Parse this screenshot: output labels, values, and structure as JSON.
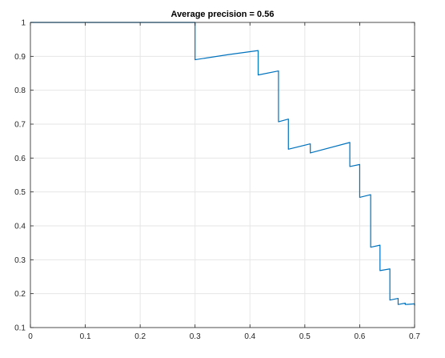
{
  "chart_data": {
    "type": "line",
    "title": "Average precision = 0.56",
    "xlabel": "",
    "ylabel": "",
    "xlim": [
      0,
      0.7
    ],
    "ylim": [
      0.1,
      1
    ],
    "grid": true,
    "x_ticks": [
      0,
      0.1,
      0.2,
      0.3,
      0.4,
      0.5,
      0.6,
      0.7
    ],
    "x_tick_labels": [
      "0",
      "0.1",
      "0.2",
      "0.3",
      "0.4",
      "0.5",
      "0.6",
      "0.7"
    ],
    "y_ticks": [
      0.1,
      0.2,
      0.3,
      0.4,
      0.5,
      0.6,
      0.7,
      0.8,
      0.9,
      1
    ],
    "y_tick_labels": [
      "0.1",
      "0.2",
      "0.3",
      "0.4",
      "0.5",
      "0.6",
      "0.7",
      "0.8",
      "0.9",
      "1"
    ],
    "series": [
      {
        "color": "#0072BD",
        "x": [
          0,
          0.3,
          0.3,
          0.36,
          0.415,
          0.415,
          0.452,
          0.452,
          0.47,
          0.47,
          0.51,
          0.51,
          0.582,
          0.582,
          0.6,
          0.6,
          0.62,
          0.62,
          0.637,
          0.637,
          0.655,
          0.655,
          0.67,
          0.67,
          0.683,
          0.683,
          0.7,
          0.7
        ],
        "y": [
          1,
          1,
          0.89,
          0.905,
          0.917,
          0.845,
          0.857,
          0.707,
          0.715,
          0.626,
          0.642,
          0.615,
          0.646,
          0.575,
          0.581,
          0.484,
          0.492,
          0.337,
          0.343,
          0.268,
          0.273,
          0.181,
          0.186,
          0.168,
          0.172,
          0.168,
          0.17,
          0.165
        ]
      }
    ]
  }
}
